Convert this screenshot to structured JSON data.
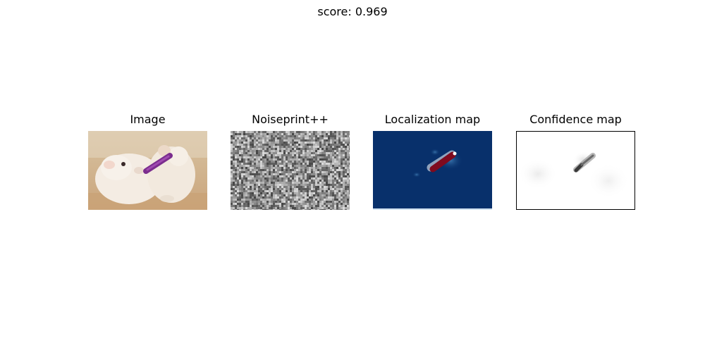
{
  "figure": {
    "suptitle": "score: 0.969"
  },
  "panels": [
    {
      "title": "Image",
      "icon": "guinea-pigs-photo"
    },
    {
      "title": "Noiseprint++",
      "icon": "noise-texture"
    },
    {
      "title": "Localization map",
      "icon": "heatmap-blue-red"
    },
    {
      "title": "Confidence map",
      "icon": "grayscale-map"
    }
  ],
  "colors": {
    "localization_background": "#08306b",
    "localization_highlight": "#7f0a1e",
    "confidence_background": "#ffffff"
  }
}
